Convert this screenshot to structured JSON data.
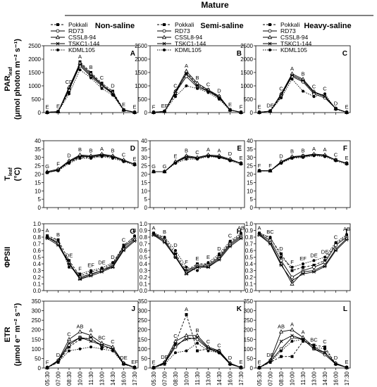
{
  "chart_data": {
    "type": "line",
    "title": "Mature",
    "column_titles": [
      "Non-saline",
      "Semi-saline",
      "Heavy-saline"
    ],
    "x": [
      "05:30",
      "07:00",
      "08:30",
      "10:00",
      "11:30",
      "13:00",
      "14:30",
      "16:00",
      "17:30"
    ],
    "series_names": [
      "Pokkali",
      "RD73",
      "CSSL8-94",
      "TSKC1-144",
      "KDML105"
    ],
    "series_styles": [
      {
        "dash": "3,2",
        "marker": "square"
      },
      {
        "dash": "",
        "marker": "circle-open"
      },
      {
        "dash": "",
        "marker": "triangle-open"
      },
      {
        "dash": "",
        "marker": "x"
      },
      {
        "dash": "1.5,1.5",
        "marker": "circle"
      }
    ],
    "rows": [
      {
        "ylabel_main": "PAR",
        "ylabel_sub": "leaf",
        "ylabel_line2": "(μmol photon m⁻² s⁻¹)",
        "ylim": [
          0,
          2500
        ],
        "yticks": [
          0,
          500,
          1000,
          1500,
          2000,
          2500
        ],
        "tick_labels": [
          "0",
          "500",
          "1000",
          "1500",
          "2000",
          "2500"
        ],
        "panels": [
          {
            "label": "A",
            "letters": [
              "E",
              "E",
              "CD",
              "A",
              "B",
              "C",
              "D",
              "E",
              "E"
            ],
            "series": [
              [
                10,
                30,
                800,
                1900,
                1500,
                1100,
                800,
                100,
                10
              ],
              [
                10,
                40,
                850,
                1750,
                1350,
                1000,
                700,
                100,
                10
              ],
              [
                10,
                30,
                950,
                1850,
                1450,
                1050,
                750,
                100,
                10
              ],
              [
                10,
                35,
                900,
                1800,
                1400,
                1050,
                720,
                100,
                10
              ],
              [
                10,
                30,
                700,
                1600,
                1300,
                900,
                650,
                80,
                10
              ]
            ]
          },
          {
            "label": "B",
            "letters": [
              "F",
              "EF",
              "C",
              "A",
              "B",
              "C",
              "D",
              "E",
              "F"
            ],
            "series": [
              [
                10,
                40,
                700,
                1500,
                1050,
                850,
                600,
                100,
                10
              ],
              [
                10,
                50,
                750,
                1350,
                950,
                800,
                550,
                100,
                10
              ],
              [
                10,
                40,
                800,
                1550,
                1100,
                850,
                620,
                100,
                10
              ],
              [
                10,
                45,
                780,
                1450,
                1000,
                820,
                580,
                100,
                10
              ],
              [
                10,
                40,
                600,
                1000,
                900,
                750,
                500,
                80,
                10
              ]
            ]
          },
          {
            "label": "C",
            "letters": [
              "E",
              "DE",
              "C",
              "A",
              "B",
              "C",
              "C",
              "D",
              "E"
            ],
            "series": [
              [
                10,
                50,
                600,
                1400,
                1200,
                750,
                600,
                150,
                10
              ],
              [
                10,
                60,
                650,
                1350,
                1150,
                700,
                550,
                150,
                10
              ],
              [
                10,
                50,
                700,
                1450,
                1250,
                780,
                620,
                150,
                10
              ],
              [
                10,
                55,
                680,
                1400,
                1200,
                760,
                600,
                150,
                10
              ],
              [
                10,
                50,
                550,
                1250,
                800,
                600,
                700,
                120,
                10
              ]
            ]
          }
        ]
      },
      {
        "ylabel_main": "T",
        "ylabel_sub": "leaf",
        "ylabel_line2": "(°C)",
        "ylim": [
          0,
          40
        ],
        "yticks": [
          0,
          5,
          10,
          15,
          20,
          25,
          30,
          35,
          40
        ],
        "tick_labels": [
          "0",
          "5",
          "10",
          "15",
          "20",
          "25",
          "30",
          "35",
          "40"
        ],
        "panels": [
          {
            "label": "D",
            "letters": [
              "G",
              "F",
              "D",
              "B",
              "B",
              "A",
              "B",
              "C",
              "E"
            ],
            "series": [
              [
                21,
                22.5,
                27,
                30,
                30,
                31,
                30,
                28,
                26
              ],
              [
                21,
                22.5,
                27.5,
                31,
                30.5,
                31,
                30.5,
                28,
                26
              ],
              [
                21.5,
                23,
                28,
                31.5,
                31,
                32,
                31,
                28.5,
                26
              ],
              [
                21,
                22.5,
                27.5,
                30.5,
                30.5,
                31.5,
                30.5,
                28,
                26
              ],
              [
                21,
                22,
                26.5,
                29.5,
                29.5,
                30.5,
                29.5,
                27.5,
                25.5
              ]
            ]
          },
          {
            "label": "E",
            "letters": [
              "G",
              "G",
              "E",
              "B",
              "C",
              "A",
              "A",
              "D",
              "E"
            ],
            "series": [
              [
                21.5,
                21.5,
                27,
                30.5,
                29.5,
                31,
                30.5,
                28.5,
                26.5
              ],
              [
                21.5,
                21.5,
                27,
                30,
                29.5,
                31,
                30,
                28.5,
                26.5
              ],
              [
                21.5,
                21.5,
                27.5,
                31,
                30,
                31.5,
                31,
                29,
                26.5
              ],
              [
                21.5,
                21.5,
                27,
                30.5,
                29.5,
                31,
                30.5,
                28.5,
                26.5
              ],
              [
                21.5,
                21.5,
                26.5,
                29,
                29,
                30.5,
                30,
                28,
                26
              ]
            ]
          },
          {
            "label": "F",
            "letters": [
              "F",
              "F",
              "D",
              "B",
              "B",
              "A",
              "A",
              "C",
              "E"
            ],
            "series": [
              [
                22,
                22,
                27,
                30,
                31,
                31.5,
                31,
                28.5,
                26.5
              ],
              [
                22,
                22,
                27,
                30,
                30.5,
                31.5,
                31,
                28.5,
                26.5
              ],
              [
                22,
                22,
                27.5,
                30.5,
                31,
                32,
                31.5,
                28.5,
                26.5
              ],
              [
                22,
                22,
                27,
                30,
                30.5,
                31.5,
                31,
                28.5,
                26.5
              ],
              [
                22,
                22,
                26.5,
                29.5,
                30,
                31,
                30.5,
                28,
                26
              ]
            ]
          }
        ]
      },
      {
        "ylabel_main": "ΦPSII",
        "ylabel_sub": "",
        "ylabel_line2": "",
        "ylim": [
          0,
          1.0
        ],
        "yticks": [
          0,
          0.1,
          0.2,
          0.3,
          0.4,
          0.5,
          0.6,
          0.7,
          0.8,
          0.9,
          1.0
        ],
        "tick_labels": [
          "0.0",
          "0.1",
          "0.2",
          "0.3",
          "0.4",
          "0.5",
          "0.6",
          "0.7",
          "0.8",
          "0.9",
          "1.0"
        ],
        "panels": [
          {
            "label": "G",
            "letters": [
              "A",
              "B",
              "DE",
              "F",
              "EF",
              "DE",
              "D",
              "C",
              "B"
            ],
            "series": [
              [
                0.82,
                0.76,
                0.45,
                0.22,
                0.28,
                0.32,
                0.4,
                0.68,
                0.8
              ],
              [
                0.8,
                0.72,
                0.4,
                0.2,
                0.25,
                0.3,
                0.38,
                0.65,
                0.78
              ],
              [
                0.8,
                0.7,
                0.42,
                0.18,
                0.24,
                0.3,
                0.36,
                0.62,
                0.76
              ],
              [
                0.78,
                0.68,
                0.4,
                0.17,
                0.22,
                0.28,
                0.35,
                0.6,
                0.74
              ],
              [
                0.8,
                0.75,
                0.35,
                0.25,
                0.3,
                0.34,
                0.42,
                0.66,
                0.82
              ]
            ]
          },
          {
            "label": "H",
            "letters": [
              "A",
              "B",
              "D",
              "F",
              "E",
              "E",
              "D",
              "C",
              "AB"
            ],
            "series": [
              [
                0.86,
                0.78,
                0.55,
                0.3,
                0.4,
                0.4,
                0.52,
                0.72,
                0.84
              ],
              [
                0.85,
                0.76,
                0.5,
                0.28,
                0.38,
                0.38,
                0.5,
                0.7,
                0.82
              ],
              [
                0.84,
                0.74,
                0.52,
                0.26,
                0.36,
                0.36,
                0.48,
                0.68,
                0.8
              ],
              [
                0.83,
                0.72,
                0.5,
                0.25,
                0.35,
                0.35,
                0.46,
                0.66,
                0.78
              ],
              [
                0.86,
                0.8,
                0.6,
                0.35,
                0.3,
                0.42,
                0.55,
                0.74,
                0.86
              ]
            ]
          },
          {
            "label": "I",
            "letters": [
              "A",
              "BC",
              "D",
              "F",
              "EF",
              "DE",
              "DE",
              "C",
              "AB"
            ],
            "series": [
              [
                0.86,
                0.78,
                0.55,
                0.3,
                0.35,
                0.38,
                0.45,
                0.7,
                0.82
              ],
              [
                0.85,
                0.75,
                0.45,
                0.2,
                0.3,
                0.35,
                0.42,
                0.68,
                0.8
              ],
              [
                0.84,
                0.72,
                0.4,
                0.1,
                0.28,
                0.3,
                0.38,
                0.62,
                0.78
              ],
              [
                0.83,
                0.7,
                0.38,
                0.15,
                0.25,
                0.28,
                0.36,
                0.6,
                0.76
              ],
              [
                0.86,
                0.8,
                0.5,
                0.35,
                0.4,
                0.45,
                0.5,
                0.72,
                0.84
              ]
            ]
          }
        ]
      },
      {
        "ylabel_main": "ETR",
        "ylabel_sub": "",
        "ylabel_line2": "(μmol e⁻ m⁻² s⁻¹)",
        "ylim": [
          0,
          350
        ],
        "yticks": [
          0,
          50,
          100,
          150,
          200,
          250,
          300,
          350
        ],
        "tick_labels": [
          "0",
          "50",
          "100",
          "150",
          "200",
          "250",
          "300",
          "350"
        ],
        "panels": [
          {
            "label": "J",
            "letters": [
              "F",
              "D",
              "C",
              "AB",
              "A",
              "BC",
              "C",
              "DE",
              "EF"
            ],
            "series": [
              [
                2,
                30,
                110,
                150,
                160,
                110,
                100,
                20,
                3
              ],
              [
                2,
                35,
                120,
                160,
                150,
                120,
                100,
                25,
                3
              ],
              [
                2,
                40,
                150,
                190,
                170,
                130,
                110,
                25,
                3
              ],
              [
                2,
                38,
                130,
                160,
                140,
                120,
                100,
                22,
                3
              ],
              [
                2,
                30,
                90,
                100,
                110,
                100,
                90,
                20,
                3
              ]
            ]
          },
          {
            "label": "K",
            "letters": [
              "E",
              "DE",
              "C",
              "A",
              "B",
              "C",
              "C",
              "D",
              "E"
            ],
            "series": [
              [
                2,
                20,
                130,
                280,
                90,
                100,
                90,
                20,
                3
              ],
              [
                2,
                25,
                110,
                160,
                150,
                100,
                80,
                20,
                3
              ],
              [
                2,
                30,
                140,
                170,
                170,
                110,
                90,
                25,
                3
              ],
              [
                2,
                28,
                120,
                150,
                160,
                105,
                85,
                22,
                3
              ],
              [
                2,
                20,
                80,
                90,
                130,
                90,
                80,
                20,
                3
              ]
            ]
          },
          {
            "label": "L",
            "letters": [
              "E",
              "DE",
              "AB",
              "A",
              "A",
              "BC",
              "C",
              "D",
              "E"
            ],
            "series": [
              [
                2,
                30,
                60,
                60,
                140,
                120,
                110,
                20,
                3
              ],
              [
                2,
                35,
                100,
                160,
                150,
                100,
                70,
                20,
                3
              ],
              [
                2,
                40,
                190,
                200,
                160,
                110,
                80,
                25,
                3
              ],
              [
                2,
                38,
                140,
                170,
                150,
                100,
                80,
                22,
                3
              ],
              [
                2,
                30,
                90,
                140,
                150,
                110,
                100,
                20,
                3
              ]
            ]
          }
        ]
      }
    ]
  }
}
